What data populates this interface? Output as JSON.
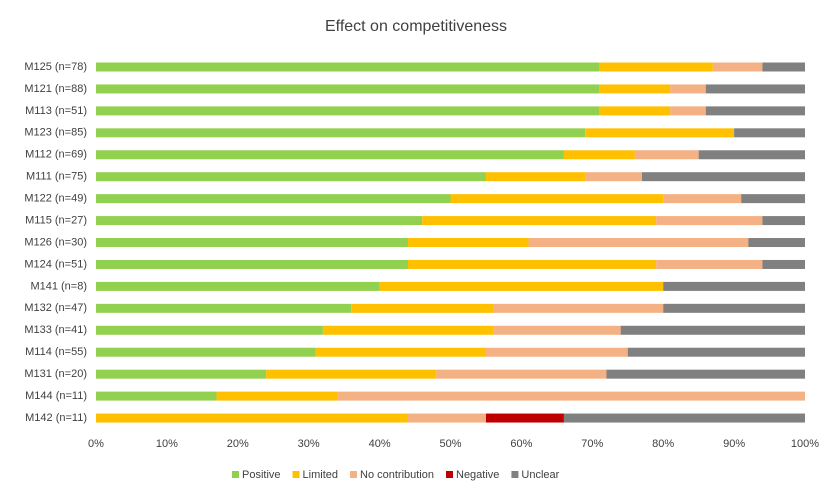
{
  "chart_data": {
    "type": "stacked-bar-horizontal",
    "title": "Effect on competitiveness",
    "categories": [
      "M125 (n=78)",
      "M121 (n=88)",
      "M113 (n=51)",
      "M123 (n=85)",
      "M112 (n=69)",
      "M111 (n=75)",
      "M122 (n=49)",
      "M115 (n=27)",
      "M126 (n=30)",
      "M124 (n=51)",
      "M141 (n=8)",
      "M132 (n=47)",
      "M133 (n=41)",
      "M114 (n=55)",
      "M131 (n=20)",
      "M144 (n=11)",
      "M142 (n=11)"
    ],
    "series": [
      {
        "name": "Positive",
        "color": "#92d050",
        "values": [
          71,
          71,
          71,
          69,
          66,
          55,
          50,
          46,
          44,
          44,
          40,
          36,
          32,
          31,
          24,
          17,
          0
        ]
      },
      {
        "name": "Limited",
        "color": "#ffc000",
        "values": [
          16,
          10,
          10,
          21,
          10,
          14,
          30,
          33,
          17,
          35,
          40,
          20,
          24,
          24,
          24,
          17,
          44
        ]
      },
      {
        "name": "No contribution",
        "color": "#f4b183",
        "values": [
          7,
          5,
          5,
          0,
          9,
          8,
          11,
          15,
          31,
          15,
          0,
          24,
          18,
          20,
          24,
          66,
          11
        ]
      },
      {
        "name": "Negative",
        "color": "#c00000",
        "values": [
          0,
          0,
          0,
          0,
          0,
          0,
          0,
          0,
          0,
          0,
          0,
          0,
          0,
          0,
          0,
          0,
          11
        ]
      },
      {
        "name": "Unclear",
        "color": "#808080",
        "values": [
          6,
          14,
          14,
          10,
          15,
          23,
          9,
          6,
          8,
          6,
          20,
          20,
          26,
          25,
          28,
          0,
          34
        ]
      }
    ],
    "xlim": [
      0,
      100
    ],
    "xticks": [
      {
        "value": 0,
        "label": "0%"
      },
      {
        "value": 10,
        "label": "10%"
      },
      {
        "value": 20,
        "label": "20%"
      },
      {
        "value": 30,
        "label": "30%"
      },
      {
        "value": 40,
        "label": "40%"
      },
      {
        "value": 50,
        "label": "50%"
      },
      {
        "value": 60,
        "label": "60%"
      },
      {
        "value": 70,
        "label": "70%"
      },
      {
        "value": 80,
        "label": "80%"
      },
      {
        "value": 90,
        "label": "90%"
      },
      {
        "value": 100,
        "label": "100%"
      }
    ],
    "legend": "bottom"
  }
}
